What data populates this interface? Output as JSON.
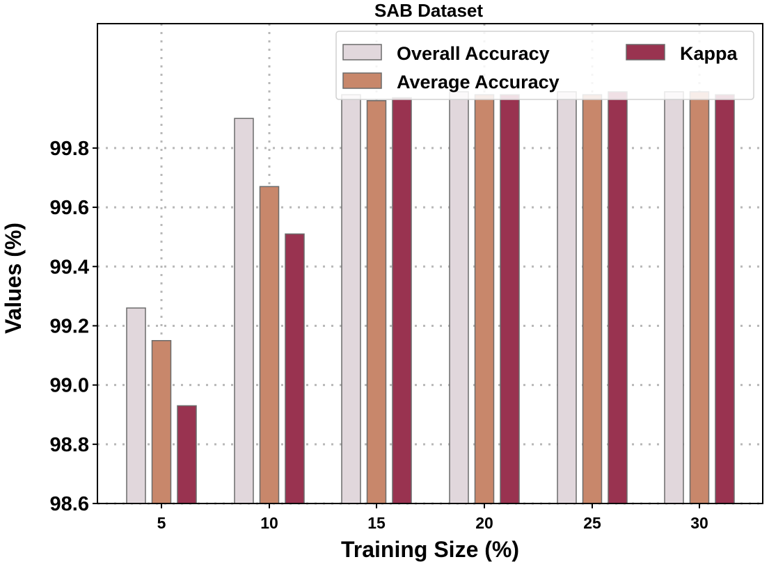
{
  "chart_data": {
    "type": "bar",
    "title": "SAB Dataset",
    "xlabel": "Training Size (%)",
    "ylabel": "Values (%)",
    "categories": [
      "5",
      "10",
      "15",
      "20",
      "25",
      "30"
    ],
    "series": [
      {
        "name": "Overall Accuracy",
        "color": "#e1d7dc",
        "values": [
          99.26,
          99.9,
          99.98,
          99.99,
          99.99,
          99.99
        ]
      },
      {
        "name": "Average Accuracy",
        "color": "#c8876b",
        "values": [
          99.15,
          99.67,
          99.96,
          99.98,
          99.98,
          99.99
        ]
      },
      {
        "name": "Kappa",
        "color": "#993350",
        "values": [
          98.93,
          99.51,
          99.97,
          99.98,
          99.99,
          99.98
        ]
      }
    ],
    "ylim": [
      98.6,
      100.22
    ],
    "yticks": [
      "98.6",
      "98.8",
      "99.0",
      "99.2",
      "99.4",
      "99.6",
      "99.8"
    ],
    "grid": true,
    "legend_position": "top-right",
    "legend_columns": 2
  }
}
